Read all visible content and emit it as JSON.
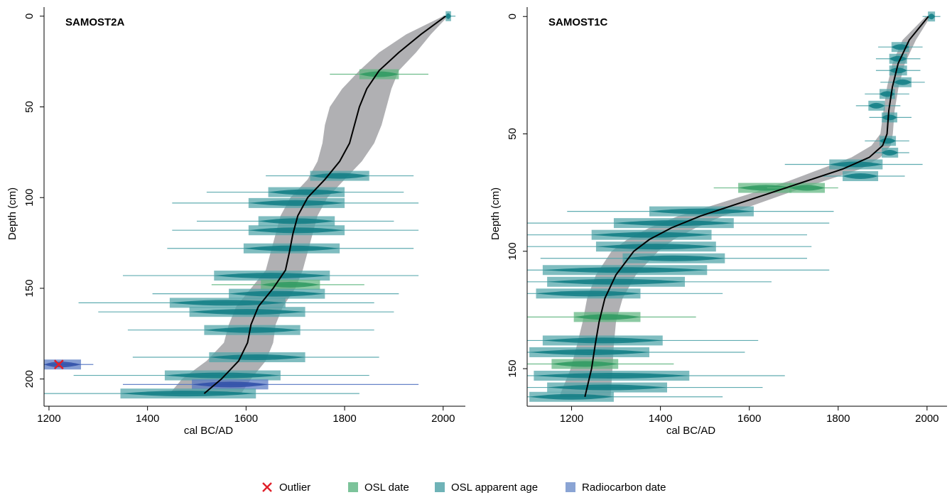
{
  "legend": {
    "items": [
      {
        "label": "Outlier",
        "symbol": "cross",
        "color": "#e0202a"
      },
      {
        "label": "OSL date",
        "symbol": "box",
        "color": "#7cc39a"
      },
      {
        "label": "OSL apparent age",
        "symbol": "box",
        "color": "#6fb3b7"
      },
      {
        "label": "Radiocarbon date",
        "symbol": "box",
        "color": "#8aa4d4"
      }
    ]
  },
  "colors": {
    "osl_date": "#5fb67f",
    "osl_apparent": "#4fa3a8",
    "osl_core": "#0f7d84",
    "radiocarbon": "#5677c2",
    "radiocarbon_core": "#2f4fa8",
    "outlier": "#e0202a",
    "envelope": "#a7a7ab",
    "model_line": "#000000"
  },
  "chart_data": [
    {
      "type": "scatter",
      "title": "SAMOST2A",
      "xlabel": "cal BC/AD",
      "ylabel": "Depth (cm)",
      "xlim": [
        1190,
        2045
      ],
      "ylim": [
        215,
        -5
      ],
      "xticks": [
        1200,
        1400,
        1600,
        1800,
        2000
      ],
      "yticks": [
        0,
        50,
        100,
        150,
        200
      ],
      "dates": [
        {
          "depth": 0,
          "kind": "osl_apparent",
          "mid": 2010,
          "lo95": 2005,
          "hi95": 2016,
          "lo2s": 2000,
          "hi2s": 2025
        },
        {
          "depth": 32,
          "kind": "osl_date",
          "mid": 1870,
          "lo95": 1830,
          "hi95": 1910,
          "lo2s": 1770,
          "hi2s": 1970
        },
        {
          "depth": 88,
          "kind": "osl_apparent",
          "mid": 1790,
          "lo95": 1730,
          "hi95": 1850,
          "lo2s": 1640,
          "hi2s": 1940
        },
        {
          "depth": 97,
          "kind": "osl_apparent",
          "mid": 1720,
          "lo95": 1645,
          "hi95": 1800,
          "lo2s": 1520,
          "hi2s": 1920
        },
        {
          "depth": 103,
          "kind": "osl_apparent",
          "mid": 1700,
          "lo95": 1605,
          "hi95": 1800,
          "lo2s": 1450,
          "hi2s": 1950
        },
        {
          "depth": 113,
          "kind": "osl_apparent",
          "mid": 1700,
          "lo95": 1625,
          "hi95": 1780,
          "lo2s": 1500,
          "hi2s": 1900
        },
        {
          "depth": 118,
          "kind": "osl_apparent",
          "mid": 1700,
          "lo95": 1605,
          "hi95": 1800,
          "lo2s": 1450,
          "hi2s": 1950
        },
        {
          "depth": 128,
          "kind": "osl_apparent",
          "mid": 1690,
          "lo95": 1595,
          "hi95": 1790,
          "lo2s": 1440,
          "hi2s": 1940
        },
        {
          "depth": 143,
          "kind": "osl_apparent",
          "mid": 1650,
          "lo95": 1535,
          "hi95": 1770,
          "lo2s": 1350,
          "hi2s": 1950
        },
        {
          "depth": 148,
          "kind": "osl_date",
          "mid": 1690,
          "lo95": 1630,
          "hi95": 1750,
          "lo2s": 1530,
          "hi2s": 1840
        },
        {
          "depth": 153,
          "kind": "osl_apparent",
          "mid": 1660,
          "lo95": 1565,
          "hi95": 1760,
          "lo2s": 1410,
          "hi2s": 1910
        },
        {
          "depth": 158,
          "kind": "osl_apparent",
          "mid": 1560,
          "lo95": 1445,
          "hi95": 1680,
          "lo2s": 1260,
          "hi2s": 1860
        },
        {
          "depth": 163,
          "kind": "osl_apparent",
          "mid": 1600,
          "lo95": 1485,
          "hi95": 1720,
          "lo2s": 1300,
          "hi2s": 1900
        },
        {
          "depth": 173,
          "kind": "osl_apparent",
          "mid": 1610,
          "lo95": 1515,
          "hi95": 1710,
          "lo2s": 1360,
          "hi2s": 1860
        },
        {
          "depth": 188,
          "kind": "osl_apparent",
          "mid": 1620,
          "lo95": 1525,
          "hi95": 1720,
          "lo2s": 1370,
          "hi2s": 1870
        },
        {
          "depth": 192,
          "kind": "radiocarbon",
          "mid": 1220,
          "lo95": 1190,
          "hi95": 1265,
          "lo2s": 1190,
          "hi2s": 1290,
          "outlier": true
        },
        {
          "depth": 198,
          "kind": "osl_apparent",
          "mid": 1550,
          "lo95": 1435,
          "hi95": 1670,
          "lo2s": 1250,
          "hi2s": 1850
        },
        {
          "depth": 203,
          "kind": "radiocarbon",
          "mid": 1570,
          "lo95": 1490,
          "hi95": 1645,
          "lo2s": 1350,
          "hi2s": 1950
        },
        {
          "depth": 208,
          "kind": "osl_apparent",
          "mid": 1480,
          "lo95": 1345,
          "hi95": 1620,
          "lo2s": 1130,
          "hi2s": 1830
        }
      ],
      "model": [
        {
          "depth": 0,
          "mean": 2005,
          "lo": 2000,
          "hi": 2010
        },
        {
          "depth": 10,
          "mean": 1955,
          "lo": 1925,
          "hi": 1975
        },
        {
          "depth": 20,
          "mean": 1910,
          "lo": 1870,
          "hi": 1945
        },
        {
          "depth": 30,
          "mean": 1870,
          "lo": 1830,
          "hi": 1910
        },
        {
          "depth": 40,
          "mean": 1845,
          "lo": 1795,
          "hi": 1895
        },
        {
          "depth": 50,
          "mean": 1830,
          "lo": 1770,
          "hi": 1885
        },
        {
          "depth": 60,
          "mean": 1820,
          "lo": 1760,
          "hi": 1875
        },
        {
          "depth": 70,
          "mean": 1810,
          "lo": 1755,
          "hi": 1860
        },
        {
          "depth": 80,
          "mean": 1790,
          "lo": 1745,
          "hi": 1835
        },
        {
          "depth": 90,
          "mean": 1760,
          "lo": 1725,
          "hi": 1800
        },
        {
          "depth": 100,
          "mean": 1725,
          "lo": 1690,
          "hi": 1765
        },
        {
          "depth": 110,
          "mean": 1705,
          "lo": 1670,
          "hi": 1745
        },
        {
          "depth": 120,
          "mean": 1695,
          "lo": 1660,
          "hi": 1735
        },
        {
          "depth": 130,
          "mean": 1688,
          "lo": 1650,
          "hi": 1725
        },
        {
          "depth": 140,
          "mean": 1680,
          "lo": 1640,
          "hi": 1715
        },
        {
          "depth": 150,
          "mean": 1655,
          "lo": 1610,
          "hi": 1700
        },
        {
          "depth": 160,
          "mean": 1625,
          "lo": 1580,
          "hi": 1675
        },
        {
          "depth": 170,
          "mean": 1610,
          "lo": 1565,
          "hi": 1660
        },
        {
          "depth": 180,
          "mean": 1603,
          "lo": 1555,
          "hi": 1655
        },
        {
          "depth": 190,
          "mean": 1585,
          "lo": 1520,
          "hi": 1640
        },
        {
          "depth": 200,
          "mean": 1550,
          "lo": 1470,
          "hi": 1610
        },
        {
          "depth": 208,
          "mean": 1515,
          "lo": 1445,
          "hi": 1590
        }
      ]
    },
    {
      "type": "scatter",
      "title": "SAMOST1C",
      "xlabel": "cal BC/AD",
      "ylabel": "Depth (cm)",
      "xlim": [
        1100,
        2045
      ],
      "ylim": [
        166,
        -4
      ],
      "xticks": [
        1200,
        1400,
        1600,
        1800,
        2000
      ],
      "yticks": [
        0,
        50,
        100,
        150
      ],
      "dates": [
        {
          "depth": 0,
          "kind": "osl_apparent",
          "mid": 2010,
          "lo95": 2002,
          "hi95": 2018,
          "lo2s": 1990,
          "hi2s": 2030
        },
        {
          "depth": 13,
          "kind": "osl_apparent",
          "mid": 1940,
          "lo95": 1920,
          "hi95": 1960,
          "lo2s": 1890,
          "hi2s": 1990
        },
        {
          "depth": 18,
          "kind": "osl_apparent",
          "mid": 1935,
          "lo95": 1915,
          "hi95": 1955,
          "lo2s": 1885,
          "hi2s": 1985
        },
        {
          "depth": 23,
          "kind": "osl_apparent",
          "mid": 1935,
          "lo95": 1915,
          "hi95": 1955,
          "lo2s": 1885,
          "hi2s": 1985
        },
        {
          "depth": 28,
          "kind": "osl_apparent",
          "mid": 1945,
          "lo95": 1925,
          "hi95": 1965,
          "lo2s": 1895,
          "hi2s": 1995
        },
        {
          "depth": 33,
          "kind": "osl_apparent",
          "mid": 1910,
          "lo95": 1893,
          "hi95": 1928,
          "lo2s": 1860,
          "hi2s": 1960
        },
        {
          "depth": 38,
          "kind": "osl_apparent",
          "mid": 1885,
          "lo95": 1868,
          "hi95": 1905,
          "lo2s": 1840,
          "hi2s": 1940
        },
        {
          "depth": 43,
          "kind": "osl_apparent",
          "mid": 1915,
          "lo95": 1898,
          "hi95": 1933,
          "lo2s": 1870,
          "hi2s": 1965
        },
        {
          "depth": 53,
          "kind": "osl_apparent",
          "mid": 1910,
          "lo95": 1893,
          "hi95": 1930,
          "lo2s": 1860,
          "hi2s": 1960
        },
        {
          "depth": 58,
          "kind": "osl_apparent",
          "mid": 1915,
          "lo95": 1898,
          "hi95": 1935,
          "lo2s": 1880,
          "hi2s": 1960
        },
        {
          "depth": 63,
          "kind": "osl_apparent",
          "mid": 1840,
          "lo95": 1780,
          "hi95": 1900,
          "lo2s": 1680,
          "hi2s": 1990
        },
        {
          "depth": 68,
          "kind": "osl_apparent",
          "mid": 1850,
          "lo95": 1810,
          "hi95": 1890,
          "lo2s": 1760,
          "hi2s": 1950
        },
        {
          "depth": 73,
          "kind": "osl_date",
          "mid": 1640,
          "lo95": 1575,
          "hi95": 1695,
          "lo2s": 1520,
          "hi2s": 1760
        },
        {
          "depth": 73,
          "kind": "osl_date",
          "mid": 1730,
          "lo95": 1690,
          "hi95": 1770,
          "lo2s": 1640,
          "hi2s": 1800
        },
        {
          "depth": 83,
          "kind": "osl_apparent",
          "mid": 1490,
          "lo95": 1375,
          "hi95": 1610,
          "lo2s": 1190,
          "hi2s": 1790
        },
        {
          "depth": 88,
          "kind": "osl_apparent",
          "mid": 1430,
          "lo95": 1295,
          "hi95": 1565,
          "lo2s": 1100,
          "hi2s": 1780
        },
        {
          "depth": 93,
          "kind": "osl_apparent",
          "mid": 1380,
          "lo95": 1245,
          "hi95": 1515,
          "lo2s": 1100,
          "hi2s": 1730
        },
        {
          "depth": 98,
          "kind": "osl_apparent",
          "mid": 1390,
          "lo95": 1255,
          "hi95": 1525,
          "lo2s": 1100,
          "hi2s": 1740
        },
        {
          "depth": 103,
          "kind": "osl_apparent",
          "mid": 1430,
          "lo95": 1315,
          "hi95": 1545,
          "lo2s": 1130,
          "hi2s": 1730
        },
        {
          "depth": 108,
          "kind": "osl_apparent",
          "mid": 1320,
          "lo95": 1135,
          "hi95": 1505,
          "lo2s": 1100,
          "hi2s": 1780
        },
        {
          "depth": 113,
          "kind": "osl_apparent",
          "mid": 1300,
          "lo95": 1145,
          "hi95": 1455,
          "lo2s": 1100,
          "hi2s": 1650
        },
        {
          "depth": 118,
          "kind": "osl_apparent",
          "mid": 1240,
          "lo95": 1120,
          "hi95": 1355,
          "lo2s": 1100,
          "hi2s": 1540
        },
        {
          "depth": 128,
          "kind": "osl_date",
          "mid": 1280,
          "lo95": 1205,
          "hi95": 1355,
          "lo2s": 1100,
          "hi2s": 1480
        },
        {
          "depth": 138,
          "kind": "osl_apparent",
          "mid": 1270,
          "lo95": 1135,
          "hi95": 1405,
          "lo2s": 1100,
          "hi2s": 1620
        },
        {
          "depth": 143,
          "kind": "osl_apparent",
          "mid": 1240,
          "lo95": 1105,
          "hi95": 1375,
          "lo2s": 1100,
          "hi2s": 1590
        },
        {
          "depth": 148,
          "kind": "osl_date",
          "mid": 1230,
          "lo95": 1155,
          "hi95": 1305,
          "lo2s": 1100,
          "hi2s": 1430
        },
        {
          "depth": 153,
          "kind": "osl_apparent",
          "mid": 1290,
          "lo95": 1115,
          "hi95": 1465,
          "lo2s": 1100,
          "hi2s": 1680
        },
        {
          "depth": 158,
          "kind": "osl_apparent",
          "mid": 1280,
          "lo95": 1145,
          "hi95": 1415,
          "lo2s": 1100,
          "hi2s": 1630
        },
        {
          "depth": 162,
          "kind": "osl_apparent",
          "mid": 1200,
          "lo95": 1105,
          "hi95": 1295,
          "lo2s": 1100,
          "hi2s": 1540
        }
      ],
      "model": [
        {
          "depth": 0,
          "mean": 2003,
          "lo": 1997,
          "hi": 2008
        },
        {
          "depth": 10,
          "mean": 1960,
          "lo": 1945,
          "hi": 1975
        },
        {
          "depth": 20,
          "mean": 1935,
          "lo": 1922,
          "hi": 1950
        },
        {
          "depth": 30,
          "mean": 1922,
          "lo": 1910,
          "hi": 1936
        },
        {
          "depth": 40,
          "mean": 1914,
          "lo": 1902,
          "hi": 1927
        },
        {
          "depth": 50,
          "mean": 1910,
          "lo": 1895,
          "hi": 1923
        },
        {
          "depth": 55,
          "mean": 1900,
          "lo": 1875,
          "hi": 1918
        },
        {
          "depth": 60,
          "mean": 1870,
          "lo": 1830,
          "hi": 1895
        },
        {
          "depth": 65,
          "mean": 1810,
          "lo": 1760,
          "hi": 1850
        },
        {
          "depth": 70,
          "mean": 1730,
          "lo": 1690,
          "hi": 1770
        },
        {
          "depth": 75,
          "mean": 1650,
          "lo": 1610,
          "hi": 1690
        },
        {
          "depth": 80,
          "mean": 1570,
          "lo": 1525,
          "hi": 1615
        },
        {
          "depth": 85,
          "mean": 1490,
          "lo": 1440,
          "hi": 1540
        },
        {
          "depth": 90,
          "mean": 1425,
          "lo": 1375,
          "hi": 1480
        },
        {
          "depth": 95,
          "mean": 1375,
          "lo": 1325,
          "hi": 1430
        },
        {
          "depth": 100,
          "mean": 1340,
          "lo": 1290,
          "hi": 1395
        },
        {
          "depth": 110,
          "mean": 1300,
          "lo": 1255,
          "hi": 1345
        },
        {
          "depth": 120,
          "mean": 1275,
          "lo": 1235,
          "hi": 1315
        },
        {
          "depth": 130,
          "mean": 1262,
          "lo": 1225,
          "hi": 1300
        },
        {
          "depth": 140,
          "mean": 1253,
          "lo": 1212,
          "hi": 1295
        },
        {
          "depth": 150,
          "mean": 1245,
          "lo": 1198,
          "hi": 1292
        },
        {
          "depth": 162,
          "mean": 1230,
          "lo": 1172,
          "hi": 1288
        }
      ]
    }
  ]
}
